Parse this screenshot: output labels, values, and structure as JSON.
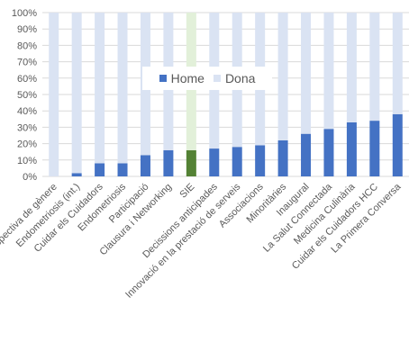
{
  "chart_data": {
    "type": "bar",
    "stacked": true,
    "categories": [
      "Perspectiva de gènere",
      "Endometriosis (int.)",
      "Cuidar els Cuidadors",
      "Endometriosis",
      "Participació",
      "Clausura i Networking",
      "SIE",
      "Decissions anticipades",
      "Innovació en la prestació de serveis",
      "Associacions",
      "Minoritàries",
      "Inaugural",
      "La Salut Connectada",
      "Medicina Culinària",
      "Cuidar els Cuidadors HCC",
      "La Primera Conversa"
    ],
    "series": [
      {
        "name": "Home",
        "values": [
          0,
          2,
          8,
          8,
          13,
          16,
          16,
          17,
          18,
          19,
          22,
          26,
          29,
          33,
          34,
          38
        ]
      },
      {
        "name": "Dona",
        "values": [
          100,
          98,
          92,
          92,
          87,
          84,
          84,
          83,
          82,
          81,
          78,
          74,
          71,
          67,
          66,
          62
        ]
      }
    ],
    "highlight": {
      "category": "SIE",
      "colors": {
        "Home": "#548235",
        "Dona": "#E2F0D9"
      }
    },
    "colors": {
      "Home": "#4472C4",
      "Dona": "#DAE3F3"
    },
    "yticks": [
      "0%",
      "10%",
      "20%",
      "30%",
      "40%",
      "50%",
      "60%",
      "70%",
      "80%",
      "90%",
      "100%"
    ],
    "ylim": [
      0,
      100
    ],
    "grid": true,
    "legend_position": "top-center",
    "title": "",
    "xlabel": "",
    "ylabel": ""
  }
}
